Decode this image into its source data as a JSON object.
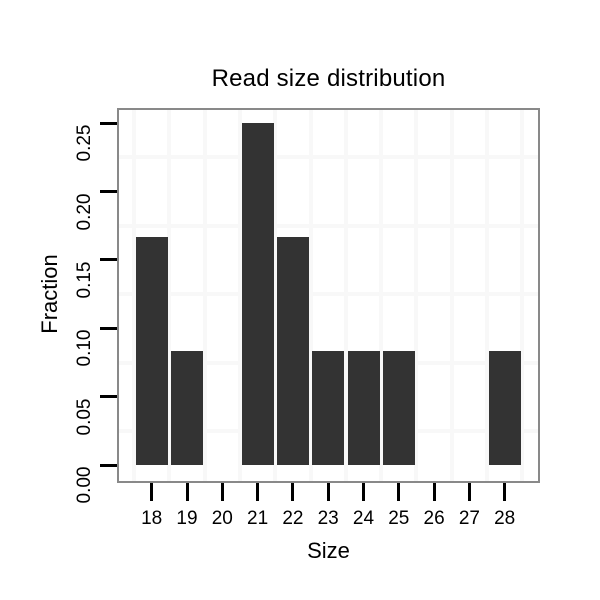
{
  "chart_data": {
    "type": "bar",
    "title": "Read size distribution",
    "xlabel": "Size",
    "ylabel": "Fraction",
    "categories": [
      18,
      19,
      20,
      21,
      22,
      23,
      24,
      25,
      26,
      27,
      28
    ],
    "values": [
      0.1667,
      0.0833,
      0,
      0.25,
      0.1667,
      0.0833,
      0.0833,
      0.0833,
      0,
      0,
      0.0833
    ],
    "x_tick_labels": [
      "18",
      "19",
      "20",
      "21",
      "22",
      "23",
      "24",
      "25",
      "26",
      "27",
      "28"
    ],
    "y_tick_labels": [
      "0.00",
      "0.05",
      "0.10",
      "0.15",
      "0.20",
      "0.25"
    ],
    "y_tick_values": [
      0.0,
      0.05,
      0.1,
      0.15,
      0.2,
      0.25
    ],
    "xlim": [
      17.0,
      29.0
    ],
    "ylim": [
      -0.0125,
      0.2625
    ],
    "bar_width_fraction": 0.9,
    "grid": "minor gridlines only, at half-step positions",
    "legend": "none",
    "colors": {
      "bar": "#333333",
      "panel_border": "#898989",
      "panel_background": "#ffffff",
      "minor_gridline": "#f8f8f8",
      "axis_tick": "#000000",
      "text": "#000000"
    }
  }
}
